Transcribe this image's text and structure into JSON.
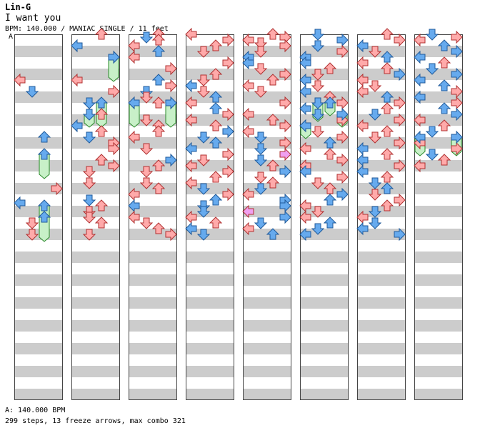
{
  "song": {
    "artist": "Lin-G",
    "title": "I want you",
    "info": "BPM: 140.000 / MANIAC SINGLE / 11 feet",
    "bpm_marker": "A",
    "bpm_legend": "A: 140.000 BPM",
    "stats": "299 steps, 13 freeze arrows, max combo 321"
  },
  "colors": {
    "background": "#ffffff",
    "band": "#cccccc",
    "border": "#444444",
    "red_arrow": "#ffaaaa",
    "red_arrow_stroke": "#b03030",
    "blue_arrow": "#66aaee",
    "blue_arrow_stroke": "#205a9a",
    "pink_arrow": "#f0a0f0",
    "freeze_fill": "#c8f0c8",
    "freeze_stroke": "#2a8a2a"
  },
  "icons": {
    "left": "arrow-left-icon",
    "down": "arrow-down-icon",
    "up": "arrow-up-icon",
    "right": "arrow-right-icon"
  },
  "chart_data": {
    "type": "step-chart",
    "title": "I want you",
    "lanes": [
      "left",
      "down",
      "up",
      "right"
    ],
    "columns": 8,
    "measures_per_column": 8,
    "total_measures": 64,
    "bpm": 140.0,
    "difficulty": "MANIAC SINGLE",
    "feet": 11,
    "steps": 299,
    "freeze_arrows": 13,
    "max_combo": 321,
    "notes": [
      [
        0,
        16,
        "left",
        "red"
      ],
      [
        0,
        20,
        "down",
        "blue"
      ],
      [
        0,
        36,
        "up",
        "blue"
      ],
      [
        0,
        54,
        "right",
        "red"
      ],
      [
        0,
        59,
        "left",
        "blue"
      ],
      [
        0,
        64,
        "up",
        "blue"
      ],
      [
        0,
        66,
        "down",
        "red"
      ],
      [
        0,
        70,
        "down",
        "red"
      ],
      [
        1,
        0,
        "up",
        "red"
      ],
      [
        1,
        4,
        "left",
        "blue"
      ],
      [
        1,
        8,
        "right",
        "blue"
      ],
      [
        1,
        16,
        "left",
        "red"
      ],
      [
        1,
        20,
        "right",
        "red"
      ],
      [
        1,
        24,
        "down",
        "blue"
      ],
      [
        1,
        28,
        "up",
        "red"
      ],
      [
        1,
        32,
        "left",
        "blue"
      ],
      [
        1,
        34,
        "up",
        "red"
      ],
      [
        1,
        36,
        "down",
        "blue"
      ],
      [
        1,
        38,
        "right",
        "red"
      ],
      [
        1,
        40,
        "right",
        "red"
      ],
      [
        1,
        44,
        "up",
        "red"
      ],
      [
        1,
        46,
        "right",
        "red"
      ],
      [
        1,
        48,
        "down",
        "red"
      ],
      [
        1,
        52,
        "down",
        "red"
      ],
      [
        1,
        58,
        "down",
        "blue"
      ],
      [
        1,
        60,
        "up",
        "red"
      ],
      [
        1,
        62,
        "down",
        "red"
      ],
      [
        1,
        64,
        "down",
        "red"
      ],
      [
        1,
        66,
        "up",
        "red"
      ],
      [
        1,
        70,
        "down",
        "red"
      ],
      [
        2,
        0,
        "up",
        "red"
      ],
      [
        2,
        1,
        "down",
        "blue"
      ],
      [
        2,
        2,
        "up",
        "red"
      ],
      [
        2,
        4,
        "left",
        "red"
      ],
      [
        2,
        6,
        "up",
        "blue"
      ],
      [
        2,
        8,
        "left",
        "red"
      ],
      [
        2,
        12,
        "right",
        "red"
      ],
      [
        2,
        16,
        "up",
        "blue"
      ],
      [
        2,
        18,
        "right",
        "red"
      ],
      [
        2,
        20,
        "down",
        "blue"
      ],
      [
        2,
        22,
        "down",
        "red"
      ],
      [
        2,
        24,
        "up",
        "red"
      ],
      [
        2,
        30,
        "down",
        "red"
      ],
      [
        2,
        32,
        "up",
        "red"
      ],
      [
        2,
        34,
        "up",
        "red"
      ],
      [
        2,
        36,
        "left",
        "red"
      ],
      [
        2,
        40,
        "down",
        "red"
      ],
      [
        2,
        44,
        "right",
        "blue"
      ],
      [
        2,
        46,
        "up",
        "red"
      ],
      [
        2,
        48,
        "down",
        "red"
      ],
      [
        2,
        52,
        "down",
        "red"
      ],
      [
        2,
        54,
        "up",
        "red"
      ],
      [
        2,
        56,
        "left",
        "red"
      ],
      [
        2,
        60,
        "left",
        "blue"
      ],
      [
        2,
        64,
        "left",
        "red"
      ],
      [
        2,
        66,
        "down",
        "red"
      ],
      [
        2,
        68,
        "up",
        "red"
      ],
      [
        2,
        70,
        "right",
        "red"
      ],
      [
        3,
        0,
        "left",
        "red"
      ],
      [
        3,
        2,
        "right",
        "red"
      ],
      [
        3,
        4,
        "up",
        "red"
      ],
      [
        3,
        6,
        "down",
        "red"
      ],
      [
        3,
        10,
        "right",
        "red"
      ],
      [
        3,
        14,
        "up",
        "red"
      ],
      [
        3,
        16,
        "down",
        "red"
      ],
      [
        3,
        18,
        "left",
        "blue"
      ],
      [
        3,
        20,
        "down",
        "red"
      ],
      [
        3,
        22,
        "up",
        "blue"
      ],
      [
        3,
        24,
        "left",
        "red"
      ],
      [
        3,
        26,
        "up",
        "blue"
      ],
      [
        3,
        28,
        "right",
        "red"
      ],
      [
        3,
        30,
        "left",
        "red"
      ],
      [
        3,
        32,
        "up",
        "red"
      ],
      [
        3,
        34,
        "right",
        "blue"
      ],
      [
        3,
        36,
        "down",
        "blue"
      ],
      [
        3,
        38,
        "up",
        "blue"
      ],
      [
        3,
        40,
        "left",
        "blue"
      ],
      [
        3,
        42,
        "right",
        "red"
      ],
      [
        3,
        44,
        "down",
        "red"
      ],
      [
        3,
        46,
        "left",
        "red"
      ],
      [
        3,
        48,
        "right",
        "red"
      ],
      [
        3,
        50,
        "up",
        "red"
      ],
      [
        3,
        52,
        "left",
        "red"
      ],
      [
        3,
        54,
        "down",
        "blue"
      ],
      [
        3,
        56,
        "right",
        "red"
      ],
      [
        3,
        58,
        "up",
        "blue"
      ],
      [
        3,
        60,
        "down",
        "blue"
      ],
      [
        3,
        62,
        "down",
        "blue"
      ],
      [
        3,
        64,
        "left",
        "red"
      ],
      [
        3,
        66,
        "up",
        "red"
      ],
      [
        3,
        68,
        "left",
        "blue"
      ],
      [
        3,
        70,
        "down",
        "blue"
      ],
      [
        4,
        0,
        "up",
        "red"
      ],
      [
        4,
        1,
        "right",
        "red"
      ],
      [
        4,
        2,
        "left",
        "red"
      ],
      [
        4,
        3,
        "down",
        "red"
      ],
      [
        4,
        4,
        "right",
        "red"
      ],
      [
        4,
        6,
        "down",
        "red"
      ],
      [
        4,
        8,
        "left",
        "blue"
      ],
      [
        4,
        10,
        "left",
        "blue"
      ],
      [
        4,
        12,
        "down",
        "red"
      ],
      [
        4,
        14,
        "right",
        "red"
      ],
      [
        4,
        16,
        "up",
        "red"
      ],
      [
        4,
        18,
        "left",
        "red"
      ],
      [
        4,
        20,
        "down",
        "red"
      ],
      [
        4,
        24,
        "right",
        "red"
      ],
      [
        4,
        28,
        "left",
        "red"
      ],
      [
        4,
        30,
        "up",
        "red"
      ],
      [
        4,
        32,
        "right",
        "red"
      ],
      [
        4,
        34,
        "left",
        "red"
      ],
      [
        4,
        36,
        "down",
        "blue"
      ],
      [
        4,
        38,
        "right",
        "red"
      ],
      [
        4,
        40,
        "down",
        "blue"
      ],
      [
        4,
        42,
        "right",
        "pink"
      ],
      [
        4,
        44,
        "down",
        "blue"
      ],
      [
        4,
        46,
        "up",
        "red"
      ],
      [
        4,
        48,
        "right",
        "blue"
      ],
      [
        4,
        50,
        "down",
        "red"
      ],
      [
        4,
        52,
        "up",
        "red"
      ],
      [
        4,
        54,
        "down",
        "blue"
      ],
      [
        4,
        56,
        "left",
        "red"
      ],
      [
        4,
        58,
        "right",
        "blue"
      ],
      [
        4,
        60,
        "right",
        "blue"
      ],
      [
        4,
        62,
        "left",
        "pink"
      ],
      [
        4,
        64,
        "right",
        "blue"
      ],
      [
        4,
        66,
        "down",
        "blue"
      ],
      [
        4,
        68,
        "left",
        "red"
      ],
      [
        4,
        70,
        "up",
        "blue"
      ],
      [
        5,
        0,
        "down",
        "blue"
      ],
      [
        5,
        2,
        "right",
        "blue"
      ],
      [
        5,
        4,
        "down",
        "blue"
      ],
      [
        5,
        6,
        "right",
        "red"
      ],
      [
        5,
        8,
        "left",
        "blue"
      ],
      [
        5,
        10,
        "left",
        "blue"
      ],
      [
        5,
        12,
        "up",
        "red"
      ],
      [
        5,
        14,
        "down",
        "red"
      ],
      [
        5,
        16,
        "left",
        "blue"
      ],
      [
        5,
        18,
        "down",
        "red"
      ],
      [
        5,
        20,
        "left",
        "blue"
      ],
      [
        5,
        22,
        "up",
        "red"
      ],
      [
        5,
        24,
        "right",
        "red"
      ],
      [
        5,
        26,
        "left",
        "blue"
      ],
      [
        5,
        28,
        "down",
        "blue"
      ],
      [
        5,
        30,
        "right",
        "red"
      ],
      [
        5,
        32,
        "left",
        "blue"
      ],
      [
        5,
        34,
        "down",
        "red"
      ],
      [
        5,
        36,
        "right",
        "red"
      ],
      [
        5,
        38,
        "up",
        "blue"
      ],
      [
        5,
        40,
        "left",
        "red"
      ],
      [
        5,
        42,
        "up",
        "red"
      ],
      [
        5,
        44,
        "right",
        "red"
      ],
      [
        5,
        46,
        "left",
        "red"
      ],
      [
        5,
        48,
        "left",
        "blue"
      ],
      [
        5,
        50,
        "right",
        "red"
      ],
      [
        5,
        52,
        "down",
        "red"
      ],
      [
        5,
        54,
        "up",
        "red"
      ],
      [
        5,
        56,
        "right",
        "blue"
      ],
      [
        5,
        58,
        "up",
        "blue"
      ],
      [
        5,
        60,
        "left",
        "red"
      ],
      [
        5,
        62,
        "down",
        "red"
      ],
      [
        5,
        64,
        "left",
        "red"
      ],
      [
        5,
        66,
        "up",
        "blue"
      ],
      [
        5,
        68,
        "down",
        "blue"
      ],
      [
        5,
        70,
        "left",
        "blue"
      ],
      [
        6,
        0,
        "up",
        "red"
      ],
      [
        6,
        2,
        "right",
        "red"
      ],
      [
        6,
        4,
        "left",
        "blue"
      ],
      [
        6,
        6,
        "down",
        "red"
      ],
      [
        6,
        8,
        "up",
        "blue"
      ],
      [
        6,
        10,
        "left",
        "red"
      ],
      [
        6,
        12,
        "up",
        "red"
      ],
      [
        6,
        14,
        "right",
        "blue"
      ],
      [
        6,
        16,
        "left",
        "red"
      ],
      [
        6,
        18,
        "down",
        "red"
      ],
      [
        6,
        20,
        "left",
        "red"
      ],
      [
        6,
        22,
        "up",
        "blue"
      ],
      [
        6,
        24,
        "right",
        "red"
      ],
      [
        6,
        26,
        "up",
        "red"
      ],
      [
        6,
        28,
        "down",
        "blue"
      ],
      [
        6,
        30,
        "right",
        "red"
      ],
      [
        6,
        32,
        "left",
        "red"
      ],
      [
        6,
        34,
        "up",
        "red"
      ],
      [
        6,
        36,
        "down",
        "red"
      ],
      [
        6,
        38,
        "right",
        "red"
      ],
      [
        6,
        40,
        "left",
        "blue"
      ],
      [
        6,
        42,
        "up",
        "red"
      ],
      [
        6,
        44,
        "left",
        "blue"
      ],
      [
        6,
        46,
        "right",
        "red"
      ],
      [
        6,
        48,
        "left",
        "blue"
      ],
      [
        6,
        50,
        "up",
        "red"
      ],
      [
        6,
        52,
        "down",
        "blue"
      ],
      [
        6,
        54,
        "up",
        "blue"
      ],
      [
        6,
        56,
        "down",
        "red"
      ],
      [
        6,
        58,
        "right",
        "red"
      ],
      [
        6,
        60,
        "up",
        "red"
      ],
      [
        6,
        62,
        "down",
        "blue"
      ],
      [
        6,
        64,
        "left",
        "red"
      ],
      [
        6,
        66,
        "down",
        "blue"
      ],
      [
        6,
        68,
        "left",
        "blue"
      ],
      [
        6,
        70,
        "right",
        "blue"
      ],
      [
        7,
        0,
        "down",
        "blue"
      ],
      [
        7,
        1,
        "right",
        "red"
      ],
      [
        7,
        2,
        "left",
        "red"
      ],
      [
        7,
        4,
        "up",
        "blue"
      ],
      [
        7,
        6,
        "right",
        "blue"
      ],
      [
        7,
        8,
        "left",
        "blue"
      ],
      [
        7,
        10,
        "up",
        "red"
      ],
      [
        7,
        12,
        "down",
        "blue"
      ],
      [
        7,
        14,
        "right",
        "blue"
      ],
      [
        7,
        16,
        "left",
        "blue"
      ],
      [
        7,
        18,
        "up",
        "blue"
      ],
      [
        7,
        20,
        "right",
        "red"
      ],
      [
        7,
        22,
        "left",
        "blue"
      ],
      [
        7,
        24,
        "right",
        "red"
      ],
      [
        7,
        26,
        "up",
        "blue"
      ],
      [
        7,
        28,
        "right",
        "blue"
      ],
      [
        7,
        30,
        "left",
        "red"
      ],
      [
        7,
        32,
        "up",
        "red"
      ],
      [
        7,
        34,
        "down",
        "blue"
      ],
      [
        7,
        36,
        "right",
        "blue"
      ],
      [
        7,
        38,
        "left",
        "red"
      ],
      [
        7,
        40,
        "right",
        "red"
      ],
      [
        7,
        42,
        "down",
        "blue"
      ],
      [
        7,
        44,
        "up",
        "red"
      ],
      [
        7,
        46,
        "left",
        "red"
      ]
    ],
    "freezes": [
      [
        0,
        42,
        50,
        "up"
      ],
      [
        0,
        60,
        72,
        "up"
      ],
      [
        1,
        8,
        16,
        "right"
      ],
      [
        1,
        24,
        32,
        "up"
      ],
      [
        1,
        28,
        32,
        "down"
      ],
      [
        2,
        24,
        32,
        "left"
      ],
      [
        2,
        24,
        32,
        "right"
      ],
      [
        5,
        24,
        28,
        "up"
      ],
      [
        5,
        24,
        30,
        "down"
      ],
      [
        5,
        28,
        32,
        "right"
      ],
      [
        5,
        32,
        36,
        "left"
      ],
      [
        7,
        36,
        42,
        "left"
      ],
      [
        7,
        36,
        42,
        "right"
      ]
    ]
  }
}
